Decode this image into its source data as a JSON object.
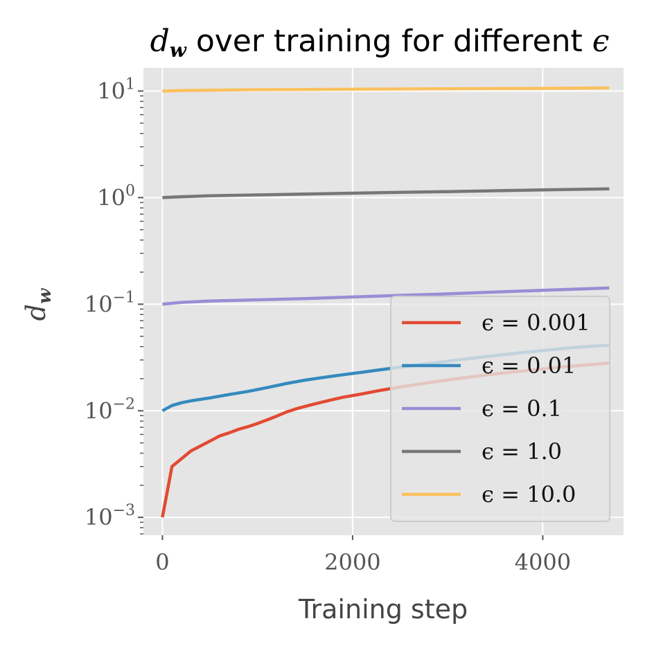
{
  "chart_data": {
    "type": "line",
    "title_prefix": "d",
    "title_subscript": "w",
    "title_middle": " over training for different ",
    "title_symbol": "ϵ",
    "xlabel": "Training step",
    "ylabel_base": "d",
    "ylabel_subscript": "w",
    "xlim": [
      -200,
      4850
    ],
    "ylim": [
      0.00068,
      16.5
    ],
    "yscale": "log",
    "grid": true,
    "legend_position": "lower right",
    "x_ticks": [
      0,
      2000,
      4000
    ],
    "y_ticks": [
      0.001,
      0.01,
      0.1,
      1,
      10
    ],
    "y_tick_labels": [
      {
        "base": "10",
        "exp": "−3"
      },
      {
        "base": "10",
        "exp": "−2"
      },
      {
        "base": "10",
        "exp": "−1"
      },
      {
        "base": "10",
        "exp": "0"
      },
      {
        "base": "10",
        "exp": "1"
      }
    ],
    "series": [
      {
        "name": "ϵ = 0.001",
        "color": "#E24A33",
        "x": [
          0,
          100,
          300,
          500,
          600,
          700,
          800,
          900,
          1000,
          1100,
          1200,
          1300,
          1400,
          1500,
          1600,
          1750,
          1900,
          2100,
          2300,
          2500,
          2700,
          2900,
          3100,
          3300,
          3500,
          3700,
          3900,
          4100,
          4300,
          4500,
          4700
        ],
        "y": [
          0.001,
          0.003,
          0.0042,
          0.0052,
          0.0058,
          0.0062,
          0.0067,
          0.0071,
          0.0076,
          0.0082,
          0.0089,
          0.0097,
          0.0104,
          0.011,
          0.0116,
          0.0125,
          0.0134,
          0.0144,
          0.0156,
          0.0167,
          0.0178,
          0.0189,
          0.02,
          0.0211,
          0.0222,
          0.0232,
          0.0242,
          0.0252,
          0.0262,
          0.0271,
          0.028
        ]
      },
      {
        "name": "ϵ = 0.01",
        "color": "#348ABD",
        "x": [
          0,
          100,
          200,
          300,
          500,
          700,
          900,
          1100,
          1300,
          1500,
          1700,
          1900,
          2100,
          2300,
          2500,
          2700,
          2900,
          3100,
          3300,
          3500,
          3700,
          3900,
          4100,
          4300,
          4500,
          4700
        ],
        "y": [
          0.01,
          0.0112,
          0.0119,
          0.0124,
          0.0132,
          0.0142,
          0.0152,
          0.0165,
          0.018,
          0.0194,
          0.0206,
          0.0218,
          0.023,
          0.0243,
          0.0256,
          0.027,
          0.0285,
          0.03,
          0.0315,
          0.033,
          0.0345,
          0.036,
          0.0375,
          0.039,
          0.0403,
          0.0412
        ]
      },
      {
        "name": "ϵ = 0.1",
        "color": "#988ED5",
        "x": [
          0,
          200,
          500,
          1000,
          1500,
          2000,
          2500,
          3000,
          3500,
          4000,
          4700
        ],
        "y": [
          0.1,
          0.104,
          0.107,
          0.11,
          0.113,
          0.117,
          0.121,
          0.125,
          0.13,
          0.135,
          0.142
        ]
      },
      {
        "name": "ϵ = 1.0",
        "color": "#777777",
        "x": [
          0,
          200,
          500,
          1000,
          1500,
          2000,
          2500,
          3000,
          3500,
          4000,
          4700
        ],
        "y": [
          1.0,
          1.02,
          1.04,
          1.06,
          1.08,
          1.1,
          1.12,
          1.14,
          1.16,
          1.18,
          1.21
        ]
      },
      {
        "name": "ϵ = 10.0",
        "color": "#FBC15E",
        "x": [
          0,
          200,
          500,
          1000,
          1500,
          2000,
          2500,
          3000,
          3500,
          4000,
          4700
        ],
        "y": [
          10.0,
          10.1,
          10.2,
          10.3,
          10.35,
          10.4,
          10.45,
          10.5,
          10.55,
          10.6,
          10.7
        ]
      }
    ]
  },
  "colors": {
    "plot_background": "#E5E5E5",
    "grid": "#FFFFFF",
    "legend_background": "#E5E5E5",
    "legend_border": "#CCCCCC"
  }
}
